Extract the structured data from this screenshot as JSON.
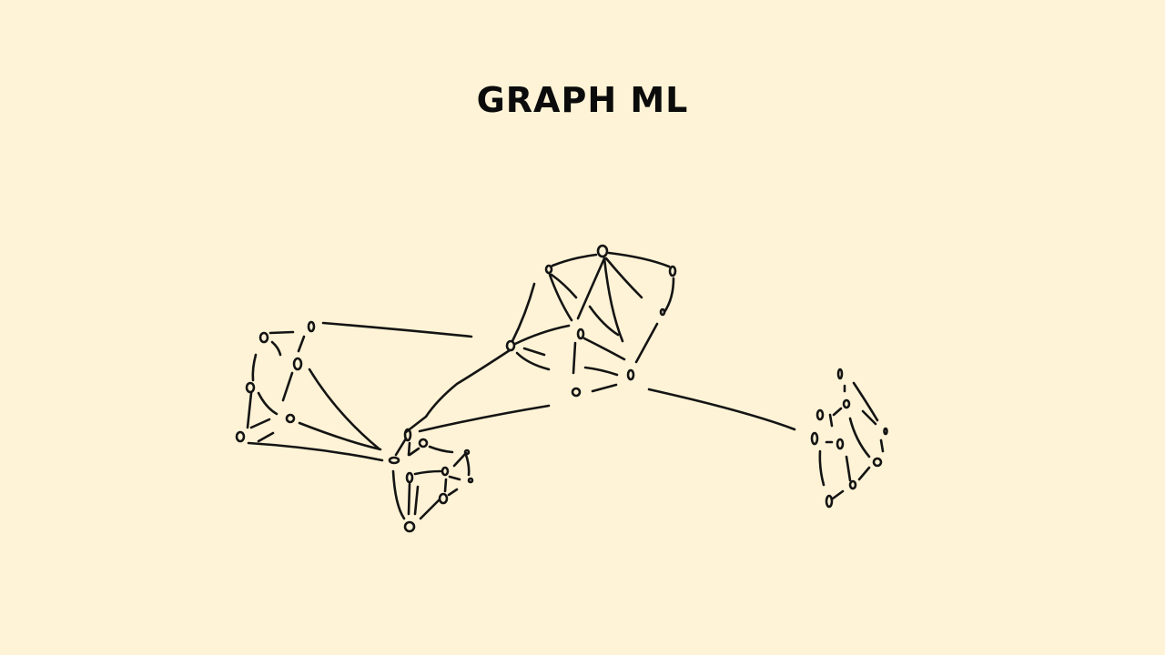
{
  "slide": {
    "title": "GRAPH ML"
  },
  "colors": {
    "background": "#FEF3D6",
    "ink": "#141414"
  },
  "diagram": {
    "type": "hand-drawn network graph",
    "clusters": [
      "left-cluster",
      "center-top-cluster",
      "bottom-cluster",
      "right-cluster"
    ]
  }
}
